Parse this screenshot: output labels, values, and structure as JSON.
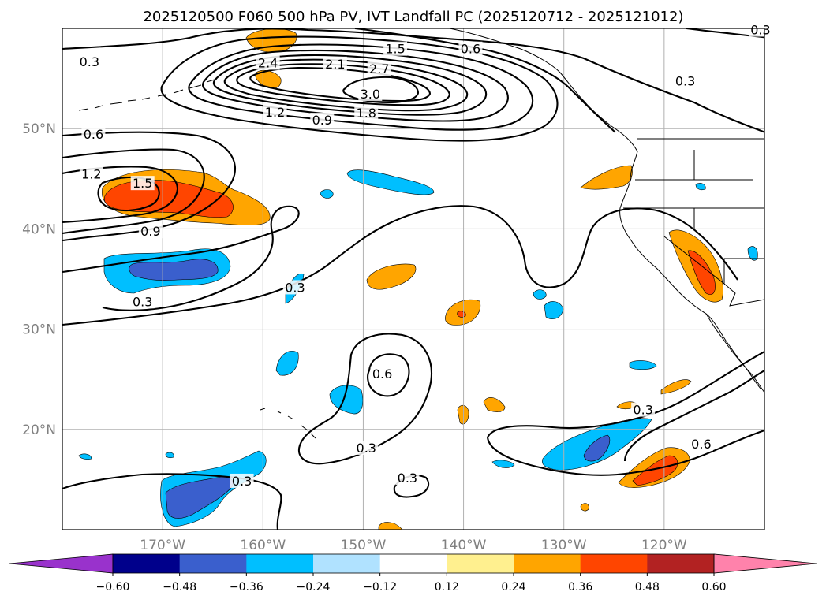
{
  "chart_data": {
    "type": "contour_map",
    "title": "2025120500 F060 500 hPa PV, IVT Landfall PC (2025120712 - 2025121012)",
    "projection": "PlateCarree",
    "lon_range": [
      -180,
      -110
    ],
    "lat_range": [
      10,
      60
    ],
    "grid": true,
    "x_ticks": [
      {
        "lon": -170,
        "label": "170°W"
      },
      {
        "lon": -160,
        "label": "160°W"
      },
      {
        "lon": -150,
        "label": "150°W"
      },
      {
        "lon": -140,
        "label": "140°W"
      },
      {
        "lon": -130,
        "label": "130°W"
      },
      {
        "lon": -120,
        "label": "120°W"
      }
    ],
    "y_ticks": [
      {
        "lat": 50,
        "label": "50°N"
      },
      {
        "lat": 40,
        "label": "40°N"
      },
      {
        "lat": 30,
        "label": "30°N"
      },
      {
        "lat": 20,
        "label": "20°N"
      }
    ],
    "colorbar": {
      "levels": [
        "−0.60",
        "−0.48",
        "−0.36",
        "−0.24",
        "−0.12",
        "0.12",
        "0.24",
        "0.36",
        "0.48",
        "0.60"
      ],
      "colors": [
        "#9932cc",
        "#00008b",
        "#3a5fcd",
        "#00bfff",
        "#b0e2ff",
        "#ffffff",
        "#fff08f",
        "#ffa500",
        "#ff4500",
        "#b22222",
        "#ff82ab"
      ],
      "extend": "both"
    },
    "contour_labels": [
      {
        "text": "0.3",
        "lon": -177.3,
        "lat": 56.6
      },
      {
        "text": "2.4",
        "lon": -159.5,
        "lat": 56.5
      },
      {
        "text": "2.1",
        "lon": -152.8,
        "lat": 56.4
      },
      {
        "text": "1.5",
        "lon": -146.8,
        "lat": 57.9
      },
      {
        "text": "2.7",
        "lon": -148.4,
        "lat": 55.9
      },
      {
        "text": "0.6",
        "lon": -139.3,
        "lat": 57.9
      },
      {
        "text": "3.0",
        "lon": -149.3,
        "lat": 53.4
      },
      {
        "text": "1.2",
        "lon": -158.8,
        "lat": 51.6
      },
      {
        "text": "0.9",
        "lon": -154.1,
        "lat": 50.8
      },
      {
        "text": "1.8",
        "lon": -149.7,
        "lat": 51.5
      },
      {
        "text": "0.3",
        "lon": -117.9,
        "lat": 54.7
      },
      {
        "text": "0.3",
        "lon": -110.4,
        "lat": 59.8
      },
      {
        "text": "0.6",
        "lon": -176.9,
        "lat": 49.4
      },
      {
        "text": "1.2",
        "lon": -177.1,
        "lat": 45.4
      },
      {
        "text": "1.5",
        "lon": -172.0,
        "lat": 44.5
      },
      {
        "text": "0.9",
        "lon": -171.2,
        "lat": 39.7
      },
      {
        "text": "0.3",
        "lon": -172.0,
        "lat": 32.7
      },
      {
        "text": "0.3",
        "lon": -156.8,
        "lat": 34.1
      },
      {
        "text": "0.6",
        "lon": -148.1,
        "lat": 25.5
      },
      {
        "text": "0.3",
        "lon": -149.7,
        "lat": 18.1
      },
      {
        "text": "0.3",
        "lon": -145.6,
        "lat": 15.1
      },
      {
        "text": "0.3",
        "lon": -162.1,
        "lat": 14.8
      },
      {
        "text": "0.3",
        "lon": -122.1,
        "lat": 21.9
      },
      {
        "text": "0.6",
        "lon": -116.3,
        "lat": 18.5
      }
    ],
    "shaded_regions": [
      {
        "level": "0.24",
        "area": "north of Aleutians",
        "lon": -157.9,
        "lat": 59.3
      },
      {
        "level": "0.36",
        "area": "central North Pacific near 43N",
        "lon": -168.0,
        "lat": 43.3
      },
      {
        "level": "-0.36",
        "area": "west of date line near 37N",
        "lon": -169.9,
        "lat": 37.0
      },
      {
        "level": "0.36",
        "area": "California coast",
        "lon": -118.7,
        "lat": 36.6
      },
      {
        "level": "-0.24",
        "area": "open ocean near 46N",
        "lon": -147.0,
        "lat": 46.0
      },
      {
        "level": "0.36",
        "area": "southwest of Baja",
        "lon": -120.0,
        "lat": 16.2
      },
      {
        "level": "-0.36",
        "area": "southwest of Baja",
        "lon": -128.6,
        "lat": 17.6
      },
      {
        "level": "-0.36",
        "area": "southwest of Hawaii",
        "lon": -165.0,
        "lat": 13.5
      }
    ]
  }
}
